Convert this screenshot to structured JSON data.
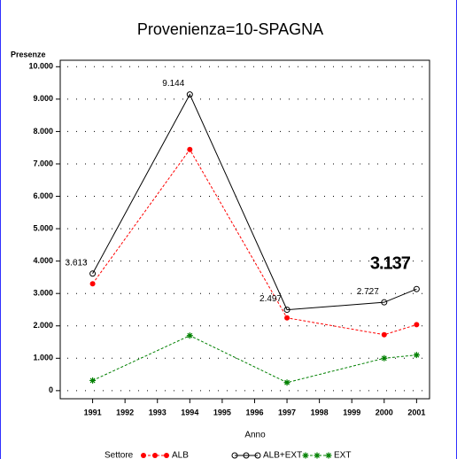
{
  "chart_data": {
    "type": "line",
    "title": "Provenienza=10-SPAGNA",
    "ylabel": "Presenze",
    "xlabel": "Anno",
    "legend_title": "Settore",
    "x": [
      1991,
      1994,
      1997,
      2000,
      2001
    ],
    "series": [
      {
        "name": "ALB",
        "color": "#ff0000",
        "marker": "dot",
        "dashed": true,
        "values": [
          3300,
          7444,
          2247,
          1727,
          2037
        ]
      },
      {
        "name": "ALB+EXT",
        "color": "#000000",
        "marker": "circle",
        "dashed": false,
        "values": [
          3613,
          9144,
          2497,
          2727,
          3137
        ],
        "value_labels": [
          "3.613",
          "9.144",
          "2.497",
          "2.727",
          "3.137"
        ]
      },
      {
        "name": "EXT",
        "color": "#008000",
        "marker": "star",
        "dashed": true,
        "values": [
          313,
          1700,
          250,
          1000,
          1100
        ]
      }
    ],
    "xlim": [
      1990,
      2001.4
    ],
    "xticks": [
      1991,
      1992,
      1993,
      1994,
      1995,
      1996,
      1997,
      1998,
      1999,
      2000,
      2001
    ],
    "ylim": [
      -250,
      10200
    ],
    "yticks": [
      0,
      {
        "value": 1000,
        "label": "1.000"
      },
      {
        "value": 2000,
        "label": "2.000"
      },
      {
        "value": 3000,
        "label": "3.000"
      },
      {
        "value": 4000,
        "label": "4.000"
      },
      {
        "value": 5000,
        "label": "5.000"
      },
      {
        "value": 6000,
        "label": "6.000"
      },
      {
        "value": 7000,
        "label": "7.000"
      },
      {
        "value": 8000,
        "label": "8.000"
      },
      {
        "value": 9000,
        "label": "9.000"
      },
      {
        "value": 10000,
        "label": "10.000"
      }
    ],
    "grid": true
  }
}
